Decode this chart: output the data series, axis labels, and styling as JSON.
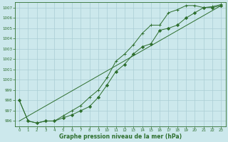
{
  "title": "Graphe pression niveau de la mer (hPa)",
  "background_color": "#cce8ec",
  "grid_color": "#aacdd4",
  "line_color": "#2d6e2d",
  "marker_color": "#2d6e2d",
  "xlim": [
    -0.5,
    23.5
  ],
  "ylim": [
    995.5,
    1007.5
  ],
  "xticks": [
    0,
    1,
    2,
    3,
    4,
    5,
    6,
    7,
    8,
    9,
    10,
    11,
    12,
    13,
    14,
    15,
    16,
    17,
    18,
    19,
    20,
    21,
    22,
    23
  ],
  "yticks": [
    996,
    997,
    998,
    999,
    1000,
    1001,
    1002,
    1003,
    1004,
    1005,
    1006,
    1007
  ],
  "series_diamond1": {
    "x": [
      0,
      1,
      2,
      3,
      4,
      5,
      6,
      7,
      8,
      9,
      10,
      11,
      12,
      13,
      14,
      15,
      16,
      17,
      18,
      19,
      20,
      21,
      22,
      23
    ],
    "y": [
      998.0,
      996.0,
      995.8,
      996.0,
      996.0,
      996.3,
      996.6,
      997.0,
      997.4,
      998.3,
      999.5,
      1000.8,
      1001.5,
      1002.5,
      1003.2,
      1003.5,
      1004.8,
      1005.0,
      1005.3,
      1006.0,
      1006.5,
      1007.0,
      1007.0,
      1007.2
    ]
  },
  "series_diamond2": {
    "x": [
      0,
      1,
      2,
      3,
      4,
      5,
      6,
      7,
      8,
      9,
      10,
      11,
      12,
      13,
      14,
      15,
      16,
      17,
      18,
      19,
      20,
      21,
      22,
      23
    ],
    "y": [
      998.0,
      996.0,
      995.8,
      996.0,
      996.0,
      996.5,
      997.0,
      997.5,
      998.3,
      999.0,
      1000.2,
      1001.8,
      1002.5,
      1003.4,
      1004.5,
      1005.3,
      1005.3,
      1006.5,
      1006.8,
      1007.2,
      1007.2,
      1007.0,
      1007.1,
      1007.3
    ]
  },
  "series_straight": {
    "x": [
      0,
      23
    ],
    "y": [
      996.0,
      1007.2
    ]
  }
}
